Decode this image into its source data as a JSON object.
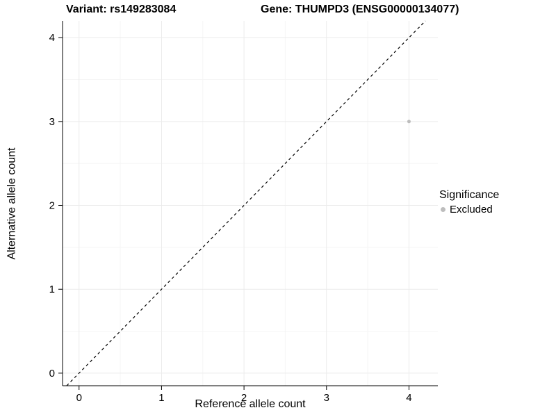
{
  "chart_data": {
    "type": "scatter",
    "title_left": "Variant: rs149283084",
    "title_right": "Gene: THUMPD3 (ENSG00000134077)",
    "xlabel": "Reference allele count",
    "ylabel": "Alternative allele count",
    "xlim": [
      -0.2,
      4.35
    ],
    "ylim": [
      -0.15,
      4.2
    ],
    "xticks": [
      0,
      1,
      2,
      3,
      4
    ],
    "yticks": [
      0,
      1,
      2,
      3,
      4
    ],
    "grid": true,
    "grid_major_color": "#ebebeb",
    "grid_minor_color": "#f5f5f5",
    "points": [
      {
        "x": 4,
        "y": 3,
        "series": "Excluded"
      }
    ],
    "point_color": "#bdbdbd",
    "point_radius": 2.5,
    "identity_line": {
      "style": "dashed",
      "color": "#000000",
      "from": "y=x"
    },
    "legend": {
      "position": "right",
      "title": "Significance",
      "items": [
        {
          "label": "Excluded",
          "color": "#bdbdbd"
        }
      ]
    }
  }
}
